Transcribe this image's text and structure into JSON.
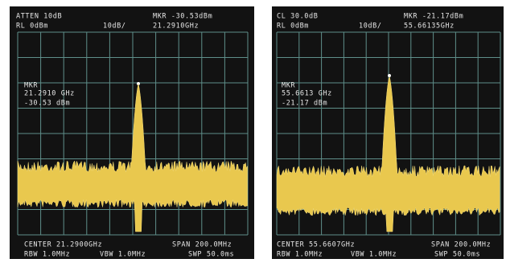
{
  "screens": [
    {
      "atten": "ATTEN 10dB",
      "ref_level": "RL 0dBm",
      "scale": "10dB/",
      "marker_level": "MKR -30.53dBm",
      "marker_freq": "21.2910GHz",
      "marker_box": {
        "label": "MKR",
        "freq": "21.2910 GHz",
        "level": "-30.53 dBm"
      },
      "center": "CENTER 21.2900GHz",
      "span": "SPAN 200.0MHz",
      "rbw": "RBW 1.0MHz",
      "vbw": "VBW 1.0MHz",
      "sweep": "SWP 50.0ms"
    },
    {
      "atten": "CL 30.0dB",
      "ref_level": "RL 0dBm",
      "scale": "10dB/",
      "marker_level": "MKR -21.17dBm",
      "marker_freq": "55.66135GHz",
      "marker_box": {
        "label": "MKR",
        "freq": "55.6613 GHz",
        "level": "-21.17 dBm"
      },
      "center": "CENTER 55.6607GHz",
      "span": "SPAN 200.0MHz",
      "rbw": "RBW 1.0MHz",
      "vbw": "VBW 1.0MHz",
      "sweep": "SWP 50.0ms"
    }
  ]
}
